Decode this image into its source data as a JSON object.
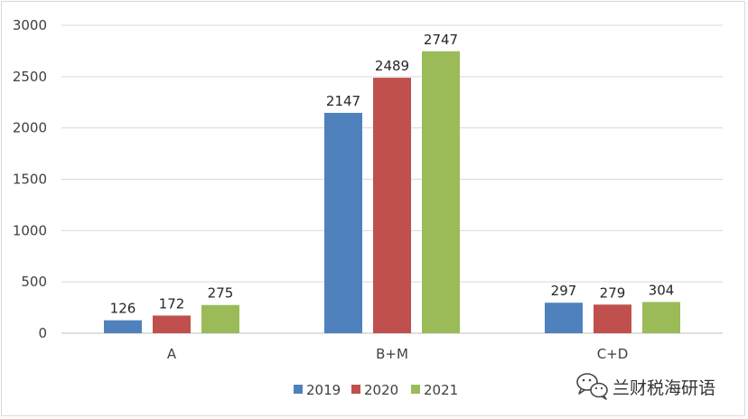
{
  "chart_data": {
    "type": "bar",
    "categories": [
      "A",
      "B+M",
      "C+D"
    ],
    "series": [
      {
        "name": "2019",
        "values": [
          126,
          2147,
          297
        ],
        "color": "#4f81bd"
      },
      {
        "name": "2020",
        "values": [
          172,
          2489,
          279
        ],
        "color": "#c0504d"
      },
      {
        "name": "2021",
        "values": [
          275,
          2747,
          304
        ],
        "color": "#9bbb59"
      }
    ],
    "title": "",
    "xlabel": "",
    "ylabel": "",
    "ylim": [
      0,
      3000
    ],
    "yticks": [
      0,
      500,
      1000,
      1500,
      2000,
      2500,
      3000
    ],
    "grid": true,
    "data_labels": true,
    "legend_position": "bottom"
  },
  "watermark": {
    "text": "兰财税海研语",
    "icon": "wechat-icon"
  },
  "colors": {
    "gridline": "#d9d9d9",
    "axis": "#bfbfbf",
    "text": "#404040"
  }
}
